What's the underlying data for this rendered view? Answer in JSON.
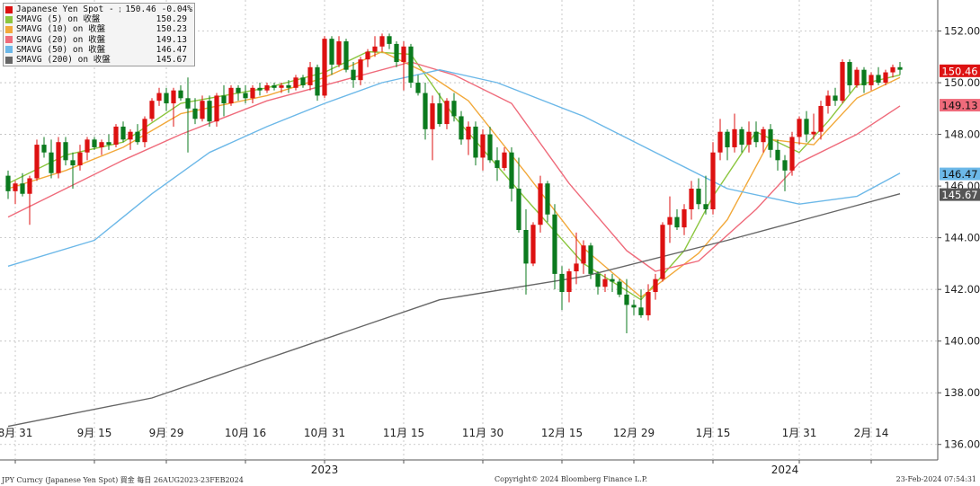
{
  "chart_data": {
    "type": "candlestick",
    "ylim": [
      135.4,
      153.2
    ],
    "y_ticks": [
      "136.00",
      "138.00",
      "140.00",
      "142.00",
      "144.00",
      "146.00",
      "148.00",
      "150.00",
      "152.00"
    ],
    "x_ticks": [
      {
        "label": "8月 31",
        "i": 1
      },
      {
        "label": "9月 15",
        "i": 12
      },
      {
        "label": "9月 29",
        "i": 22
      },
      {
        "label": "10月 16",
        "i": 33
      },
      {
        "label": "10月 31",
        "i": 44
      },
      {
        "label": "11月 15",
        "i": 55
      },
      {
        "label": "11月 30",
        "i": 66
      },
      {
        "label": "12月 15",
        "i": 77
      },
      {
        "label": "12月 29",
        "i": 87
      },
      {
        "label": "1月 15",
        "i": 98
      },
      {
        "label": "1月 31",
        "i": 110
      },
      {
        "label": "2月 14",
        "i": 120
      }
    ],
    "year_labels": [
      {
        "label": "2023",
        "i": 44
      },
      {
        "label": "2024",
        "i": 108
      }
    ],
    "ohlc": [
      [
        146.4,
        146.6,
        145.5,
        145.8
      ],
      [
        145.8,
        146.2,
        145.3,
        146.1
      ],
      [
        146.1,
        146.5,
        145.6,
        145.7
      ],
      [
        145.7,
        146.4,
        144.5,
        146.3
      ],
      [
        146.3,
        147.8,
        146.2,
        147.6
      ],
      [
        147.6,
        147.9,
        147.1,
        147.3
      ],
      [
        147.3,
        147.8,
        146.3,
        146.5
      ],
      [
        146.5,
        147.9,
        146.3,
        147.7
      ],
      [
        147.7,
        147.9,
        146.8,
        147.0
      ],
      [
        147.0,
        147.3,
        145.9,
        146.8
      ],
      [
        146.8,
        147.6,
        146.6,
        147.3
      ],
      [
        147.3,
        147.9,
        147.0,
        147.8
      ],
      [
        147.8,
        147.9,
        147.4,
        147.5
      ],
      [
        147.5,
        147.8,
        147.2,
        147.7
      ],
      [
        147.7,
        148.0,
        147.4,
        147.6
      ],
      [
        147.6,
        148.4,
        147.5,
        148.3
      ],
      [
        148.3,
        148.5,
        147.7,
        147.8
      ],
      [
        147.8,
        148.2,
        147.4,
        148.1
      ],
      [
        148.1,
        148.4,
        147.6,
        147.7
      ],
      [
        147.7,
        148.7,
        147.5,
        148.6
      ],
      [
        148.6,
        149.4,
        148.5,
        149.3
      ],
      [
        149.3,
        149.8,
        149.1,
        149.6
      ],
      [
        149.6,
        149.8,
        148.9,
        149.2
      ],
      [
        149.2,
        149.8,
        148.3,
        149.7
      ],
      [
        149.7,
        149.9,
        149.3,
        149.4
      ],
      [
        149.4,
        150.2,
        147.3,
        149.0
      ],
      [
        149.0,
        149.4,
        148.4,
        148.6
      ],
      [
        148.6,
        149.5,
        148.5,
        149.3
      ],
      [
        149.3,
        149.5,
        148.3,
        148.5
      ],
      [
        148.5,
        149.6,
        148.3,
        149.5
      ],
      [
        149.5,
        149.9,
        148.7,
        149.2
      ],
      [
        149.2,
        149.9,
        149.1,
        149.8
      ],
      [
        149.8,
        149.9,
        149.3,
        149.6
      ],
      [
        149.6,
        149.9,
        149.2,
        149.4
      ],
      [
        149.4,
        149.9,
        149.2,
        149.8
      ],
      [
        149.8,
        150.0,
        149.5,
        149.7
      ],
      [
        149.7,
        150.0,
        149.6,
        149.9
      ],
      [
        149.9,
        150.0,
        149.7,
        149.8
      ],
      [
        149.8,
        150.0,
        149.6,
        149.9
      ],
      [
        149.9,
        150.1,
        149.6,
        149.8
      ],
      [
        149.8,
        150.3,
        149.7,
        150.2
      ],
      [
        150.2,
        150.3,
        149.8,
        149.9
      ],
      [
        149.9,
        150.8,
        149.7,
        150.6
      ],
      [
        150.6,
        150.7,
        149.3,
        149.5
      ],
      [
        149.5,
        151.8,
        149.4,
        151.7
      ],
      [
        151.7,
        151.8,
        150.3,
        150.7
      ],
      [
        150.7,
        151.8,
        150.6,
        151.6
      ],
      [
        151.6,
        151.7,
        150.4,
        150.5
      ],
      [
        150.5,
        150.8,
        149.8,
        150.1
      ],
      [
        150.1,
        151.0,
        149.9,
        150.9
      ],
      [
        150.9,
        151.3,
        150.6,
        151.2
      ],
      [
        151.2,
        151.8,
        151.0,
        151.4
      ],
      [
        151.4,
        151.9,
        151.2,
        151.8
      ],
      [
        151.8,
        151.9,
        151.3,
        151.5
      ],
      [
        151.5,
        151.6,
        150.6,
        150.8
      ],
      [
        150.8,
        151.6,
        149.7,
        151.4
      ],
      [
        151.4,
        151.5,
        149.8,
        150.0
      ],
      [
        150.0,
        150.3,
        149.5,
        149.6
      ],
      [
        149.6,
        150.0,
        147.8,
        148.2
      ],
      [
        148.2,
        149.5,
        147.0,
        149.2
      ],
      [
        149.2,
        149.6,
        148.3,
        148.4
      ],
      [
        148.4,
        149.4,
        148.2,
        149.3
      ],
      [
        149.3,
        149.6,
        148.5,
        148.7
      ],
      [
        148.7,
        148.9,
        147.6,
        147.8
      ],
      [
        147.8,
        148.5,
        147.2,
        148.3
      ],
      [
        148.3,
        148.5,
        146.8,
        147.1
      ],
      [
        147.1,
        148.2,
        146.6,
        148.0
      ],
      [
        148.0,
        148.3,
        146.9,
        147.0
      ],
      [
        147.0,
        147.5,
        146.2,
        146.7
      ],
      [
        146.7,
        147.5,
        146.6,
        147.3
      ],
      [
        147.3,
        147.5,
        145.4,
        145.9
      ],
      [
        145.9,
        147.1,
        144.2,
        144.3
      ],
      [
        144.3,
        145.1,
        141.8,
        143.0
      ],
      [
        143.0,
        144.6,
        142.9,
        144.5
      ],
      [
        144.5,
        146.4,
        144.2,
        146.1
      ],
      [
        146.1,
        146.2,
        144.6,
        144.9
      ],
      [
        144.9,
        145.3,
        142.0,
        142.6
      ],
      [
        142.6,
        142.9,
        141.2,
        141.9
      ],
      [
        141.9,
        142.8,
        141.5,
        142.7
      ],
      [
        142.7,
        144.2,
        142.2,
        143.0
      ],
      [
        143.0,
        143.9,
        142.6,
        143.7
      ],
      [
        143.7,
        143.8,
        142.4,
        142.6
      ],
      [
        142.6,
        142.7,
        141.8,
        142.1
      ],
      [
        142.1,
        142.6,
        141.9,
        142.4
      ],
      [
        142.4,
        142.6,
        141.9,
        142.3
      ],
      [
        142.3,
        142.4,
        141.7,
        141.8
      ],
      [
        141.8,
        142.4,
        140.3,
        141.4
      ],
      [
        141.4,
        141.6,
        141.0,
        141.3
      ],
      [
        141.3,
        142.0,
        140.9,
        141.0
      ],
      [
        141.0,
        142.2,
        140.8,
        141.9
      ],
      [
        141.9,
        142.6,
        141.6,
        142.4
      ],
      [
        142.4,
        144.6,
        142.3,
        144.5
      ],
      [
        144.5,
        145.6,
        143.8,
        144.8
      ],
      [
        144.8,
        145.1,
        144.3,
        144.4
      ],
      [
        144.4,
        145.3,
        144.1,
        145.1
      ],
      [
        145.1,
        146.2,
        144.7,
        145.9
      ],
      [
        145.9,
        146.3,
        145.1,
        145.3
      ],
      [
        145.3,
        146.4,
        144.9,
        145.1
      ],
      [
        145.1,
        147.7,
        144.9,
        147.3
      ],
      [
        147.3,
        148.6,
        147.0,
        148.1
      ],
      [
        148.1,
        148.2,
        147.0,
        147.5
      ],
      [
        147.5,
        148.8,
        147.3,
        148.2
      ],
      [
        148.2,
        148.3,
        147.3,
        147.6
      ],
      [
        147.6,
        148.5,
        147.3,
        148.1
      ],
      [
        148.1,
        148.5,
        147.5,
        147.7
      ],
      [
        147.7,
        148.3,
        147.3,
        148.2
      ],
      [
        148.2,
        148.4,
        147.1,
        147.4
      ],
      [
        147.4,
        147.8,
        146.6,
        147.0
      ],
      [
        147.0,
        147.2,
        145.8,
        146.6
      ],
      [
        146.6,
        148.1,
        146.4,
        147.9
      ],
      [
        147.9,
        148.7,
        147.6,
        148.6
      ],
      [
        148.6,
        148.9,
        147.7,
        148.0
      ],
      [
        148.0,
        148.8,
        147.8,
        148.1
      ],
      [
        148.1,
        149.3,
        147.8,
        149.1
      ],
      [
        149.1,
        149.7,
        148.8,
        149.5
      ],
      [
        149.5,
        149.8,
        149.1,
        149.3
      ],
      [
        149.3,
        150.9,
        149.2,
        150.8
      ],
      [
        150.8,
        150.9,
        149.6,
        149.9
      ],
      [
        149.9,
        150.6,
        149.8,
        150.5
      ],
      [
        150.5,
        150.6,
        149.6,
        149.9
      ],
      [
        149.9,
        150.4,
        149.7,
        150.3
      ],
      [
        150.3,
        150.6,
        149.9,
        150.0
      ],
      [
        150.0,
        150.5,
        149.9,
        150.4
      ],
      [
        150.4,
        150.7,
        150.2,
        150.6
      ],
      [
        150.6,
        150.8,
        150.3,
        150.5
      ]
    ],
    "sma": [
      {
        "period": 5,
        "color": "#8cc63f",
        "points": [
          [
            0,
            146.1
          ],
          [
            8,
            147.2
          ],
          [
            16,
            147.7
          ],
          [
            24,
            149.2
          ],
          [
            36,
            149.8
          ],
          [
            44,
            150.4
          ],
          [
            50,
            151.2
          ],
          [
            56,
            151.1
          ],
          [
            62,
            148.7
          ],
          [
            72,
            145.5
          ],
          [
            80,
            143.0
          ],
          [
            88,
            141.6
          ],
          [
            94,
            143.5
          ],
          [
            98,
            145.6
          ],
          [
            104,
            148.1
          ],
          [
            110,
            147.3
          ],
          [
            114,
            148.5
          ],
          [
            118,
            149.9
          ],
          [
            124,
            150.3
          ]
        ]
      },
      {
        "period": 10,
        "color": "#f2a93b",
        "points": [
          [
            0,
            145.9
          ],
          [
            8,
            146.6
          ],
          [
            16,
            147.5
          ],
          [
            24,
            148.8
          ],
          [
            36,
            149.5
          ],
          [
            44,
            150.2
          ],
          [
            52,
            151.2
          ],
          [
            58,
            150.4
          ],
          [
            64,
            149.3
          ],
          [
            72,
            146.5
          ],
          [
            80,
            143.6
          ],
          [
            88,
            141.7
          ],
          [
            96,
            143.4
          ],
          [
            100,
            144.7
          ],
          [
            106,
            147.8
          ],
          [
            112,
            147.6
          ],
          [
            118,
            149.4
          ],
          [
            124,
            150.2
          ]
        ]
      },
      {
        "period": 20,
        "color": "#ef6b7b",
        "points": [
          [
            0,
            144.8
          ],
          [
            8,
            145.9
          ],
          [
            16,
            147.0
          ],
          [
            24,
            148.0
          ],
          [
            36,
            149.3
          ],
          [
            44,
            149.9
          ],
          [
            56,
            150.8
          ],
          [
            62,
            150.3
          ],
          [
            70,
            149.2
          ],
          [
            78,
            146.1
          ],
          [
            86,
            143.5
          ],
          [
            90,
            142.7
          ],
          [
            96,
            143.1
          ],
          [
            104,
            145.1
          ],
          [
            110,
            146.9
          ],
          [
            118,
            148.0
          ],
          [
            124,
            149.1
          ]
        ]
      },
      {
        "period": 50,
        "color": "#6cb8e8",
        "points": [
          [
            0,
            142.9
          ],
          [
            12,
            143.9
          ],
          [
            20,
            145.7
          ],
          [
            28,
            147.3
          ],
          [
            36,
            148.3
          ],
          [
            44,
            149.2
          ],
          [
            52,
            150.0
          ],
          [
            60,
            150.5
          ],
          [
            68,
            150.0
          ],
          [
            80,
            148.7
          ],
          [
            90,
            147.3
          ],
          [
            100,
            145.9
          ],
          [
            110,
            145.3
          ],
          [
            118,
            145.6
          ],
          [
            124,
            146.5
          ]
        ]
      },
      {
        "period": 200,
        "color": "#666666",
        "points": [
          [
            0,
            136.7
          ],
          [
            20,
            137.8
          ],
          [
            40,
            139.7
          ],
          [
            60,
            141.6
          ],
          [
            80,
            142.5
          ],
          [
            100,
            143.9
          ],
          [
            116,
            145.1
          ],
          [
            124,
            145.7
          ]
        ]
      }
    ]
  },
  "legend": [
    {
      "name": "Japanese Yen Spot - 最新價",
      "value": "150.46",
      "change": "-0.04%",
      "color": "#dd1111"
    },
    {
      "name": "SMAVG (5)  on 收盤",
      "value": "150.29",
      "color": "#8cc63f"
    },
    {
      "name": "SMAVG (10)  on 收盤",
      "value": "150.23",
      "color": "#f2a93b"
    },
    {
      "name": "SMAVG (20)  on 收盤",
      "value": "149.13",
      "color": "#ef6b7b"
    },
    {
      "name": "SMAVG (50)  on 收盤",
      "value": "146.47",
      "color": "#6cb8e8"
    },
    {
      "name": "SMAVG (200)  on 收盤",
      "value": "145.67",
      "color": "#666666"
    }
  ],
  "value_tags": [
    {
      "value": "150.46",
      "bg": "#dd1111",
      "fg": "#ffffff"
    },
    {
      "value": "149.13",
      "bg": "#ef6b7b",
      "fg": "#111111"
    },
    {
      "value": "146.47",
      "bg": "#6cb8e8",
      "fg": "#111111"
    },
    {
      "value": "145.67",
      "bg": "#555555",
      "fg": "#ffffff"
    }
  ],
  "footer": {
    "left": "JPY Curncy (Japanese Yen Spot) 買金  每日 26AUG2023-23FEB2024",
    "center": "Copyright© 2024 Bloomberg Finance L.P.",
    "right": "23-Feb-2024 07:54:31"
  }
}
